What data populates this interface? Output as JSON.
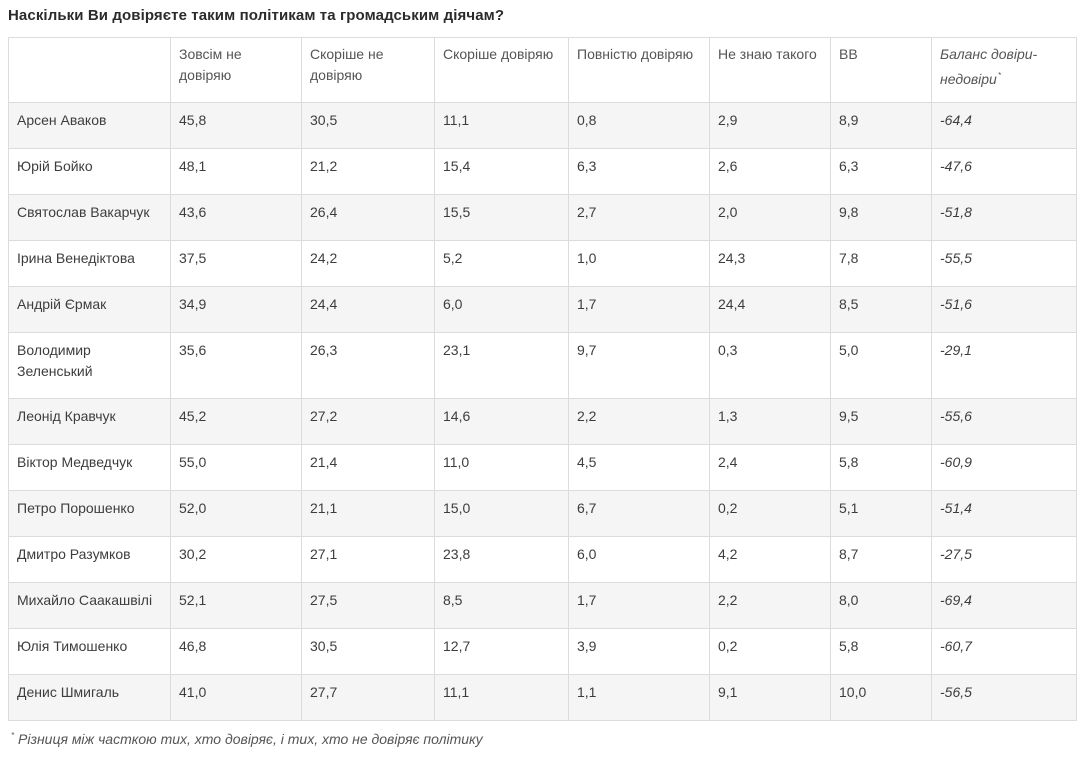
{
  "title": "Наскільки Ви довіряєте таким політикам та громадським діячам?",
  "columns": [
    "",
    "Зовсім не довіряю",
    "Скоріше не довіряю",
    "Скоріше довіряю",
    "Повністю довіряю",
    "Не знаю такого",
    "ВВ",
    "Баланс довіри-недовіри"
  ],
  "balance_marker": "*",
  "rows": [
    [
      "Арсен Аваков",
      "45,8",
      "30,5",
      "11,1",
      "0,8",
      "2,9",
      "8,9",
      "-64,4"
    ],
    [
      "Юрій Бойко",
      "48,1",
      "21,2",
      "15,4",
      "6,3",
      "2,6",
      "6,3",
      "-47,6"
    ],
    [
      "Святослав Вакарчук",
      "43,6",
      "26,4",
      "15,5",
      "2,7",
      "2,0",
      "9,8",
      "-51,8"
    ],
    [
      "Ірина Венедіктова",
      "37,5",
      "24,2",
      "5,2",
      "1,0",
      "24,3",
      "7,8",
      "-55,5"
    ],
    [
      "Андрій Єрмак",
      "34,9",
      "24,4",
      "6,0",
      "1,7",
      "24,4",
      "8,5",
      "-51,6"
    ],
    [
      "Володимир Зеленський",
      "35,6",
      "26,3",
      "23,1",
      "9,7",
      "0,3",
      "5,0",
      "-29,1"
    ],
    [
      "Леонід Кравчук",
      "45,2",
      "27,2",
      "14,6",
      "2,2",
      "1,3",
      "9,5",
      "-55,6"
    ],
    [
      "Віктор Медведчук",
      "55,0",
      "21,4",
      "11,0",
      "4,5",
      "2,4",
      "5,8",
      "-60,9"
    ],
    [
      "Петро Порошенко",
      "52,0",
      "21,1",
      "15,0",
      "6,7",
      "0,2",
      "5,1",
      "-51,4"
    ],
    [
      "Дмитро Разумков",
      "30,2",
      "27,1",
      "23,8",
      "6,0",
      "4,2",
      "8,7",
      "-27,5"
    ],
    [
      "Михайло Саакашвілі",
      "52,1",
      "27,5",
      "8,5",
      "1,7",
      "2,2",
      "8,0",
      "-69,4"
    ],
    [
      "Юлія Тимошенко",
      "46,8",
      "30,5",
      "12,7",
      "3,9",
      "0,2",
      "5,8",
      "-60,7"
    ],
    [
      "Денис Шмигаль",
      "41,0",
      "27,7",
      "11,1",
      "1,1",
      "9,1",
      "10,0",
      "-56,5"
    ]
  ],
  "footnote_marker": "*",
  "footnote": "Різниця між часткою тих, хто довіряє, і тих, хто не довіряє політику"
}
